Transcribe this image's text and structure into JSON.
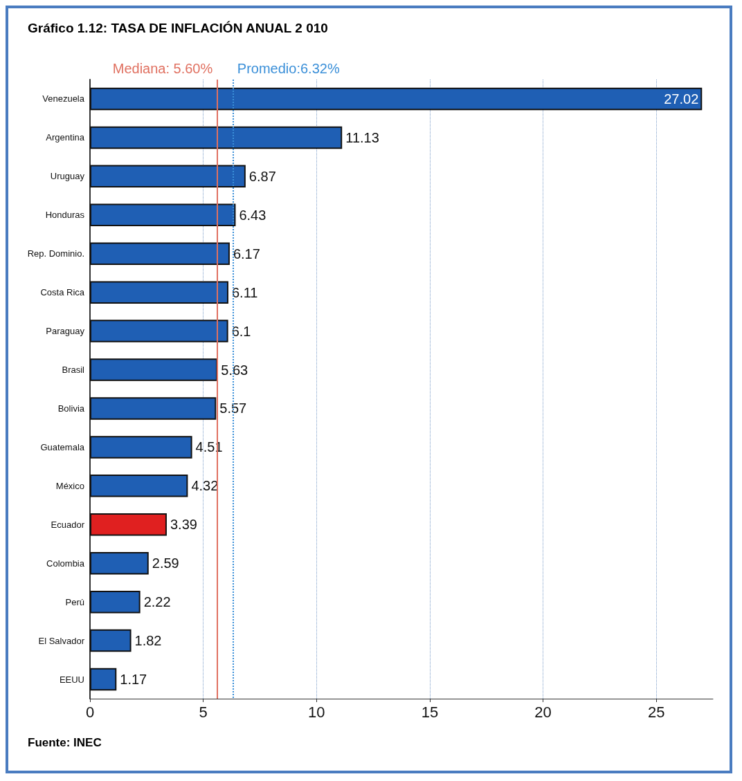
{
  "chart_data": {
    "type": "bar",
    "orientation": "horizontal",
    "title": "Gráfico 1.12: TASA DE INFLACIÓN ANUAL 2 010",
    "categories": [
      "Venezuela",
      "Argentina",
      "Uruguay",
      "Honduras",
      "Rep. Dominio.",
      "Costa Rica",
      "Paraguay",
      "Brasil",
      "Bolivia",
      "Guatemala",
      "México",
      "Ecuador",
      "Colombia",
      "Perú",
      "El Salvador",
      "EEUU"
    ],
    "values": [
      27.02,
      11.13,
      6.87,
      6.43,
      6.17,
      6.11,
      6.1,
      5.63,
      5.57,
      4.51,
      4.32,
      3.39,
      2.59,
      2.22,
      1.82,
      1.17
    ],
    "colors": [
      "#1f5fb4",
      "#1f5fb4",
      "#1f5fb4",
      "#1f5fb4",
      "#1f5fb4",
      "#1f5fb4",
      "#1f5fb4",
      "#1f5fb4",
      "#1f5fb4",
      "#1f5fb4",
      "#1f5fb4",
      "#e02020",
      "#1f5fb4",
      "#1f5fb4",
      "#1f5fb4",
      "#1f5fb4"
    ],
    "xlim": [
      0,
      27.5
    ],
    "xticks": [
      0,
      5,
      10,
      15,
      20,
      25
    ],
    "grid": "x",
    "data_labels": true,
    "ref_lines": [
      {
        "axis": "x",
        "value": 6.32,
        "label": "Promedio:6.32%",
        "color": "#3a8fd8",
        "line_style": "dotted"
      },
      {
        "axis": "x",
        "value": 5.6,
        "label": "Mediana: 5.60%",
        "color": "#e07060",
        "line_style": "solid"
      }
    ],
    "annotations": [
      "Fuente: INEC"
    ]
  }
}
